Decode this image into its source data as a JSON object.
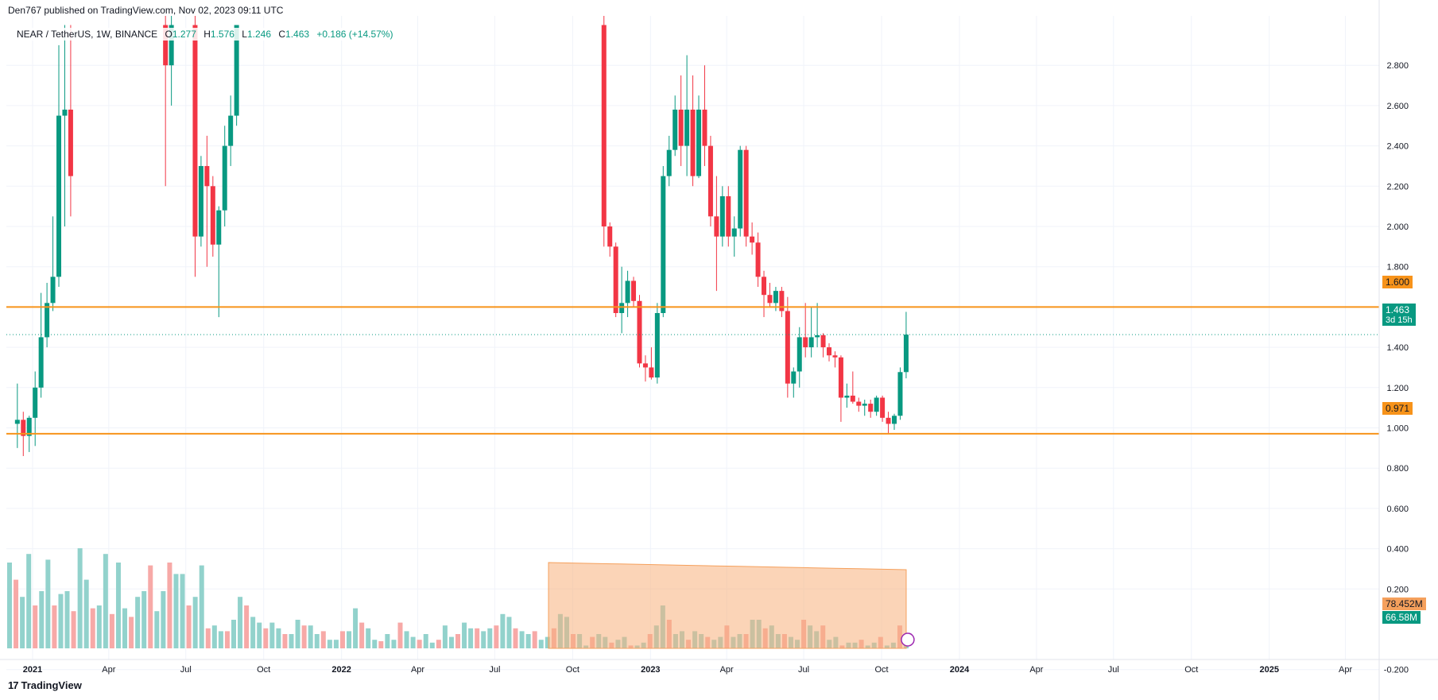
{
  "header": {
    "text": "Den767 published on TradingView.com, Nov 02, 2023 09:11 UTC"
  },
  "legend": {
    "symbol": "NEAR / TetherUS, 1W, BINANCE",
    "o_label": "O",
    "o_value": "1.277",
    "h_label": "H",
    "h_value": "1.576",
    "l_label": "L",
    "l_value": "1.246",
    "c_label": "C",
    "c_value": "1.463",
    "change": "+0.186 (+14.57%)"
  },
  "footer": {
    "logo": "17",
    "brand": "TradingView"
  },
  "badges": {
    "resistance": "1.600",
    "support": "0.971",
    "price": "1.463",
    "countdown": "3d 15h",
    "vol_ma": "78.452M",
    "vol_last": "66.58M"
  },
  "colors": {
    "up": "#089981",
    "down": "#f23645",
    "line": "#f7931a",
    "vol_ma_fill": "#f8b07c",
    "grid": "#f0f3fa"
  },
  "chart_data": {
    "type": "candlestick",
    "title": "NEAR / TetherUS, 1W, BINANCE",
    "y_ticks": [
      "2.800",
      "2.600",
      "2.400",
      "2.200",
      "2.000",
      "1.800",
      "1.600",
      "1.400",
      "1.200",
      "1.000",
      "0.800",
      "0.600",
      "0.400",
      "0.200",
      "-0.200"
    ],
    "x_ticks": [
      "2021",
      "Apr",
      "Jul",
      "Oct",
      "2022",
      "Apr",
      "Jul",
      "Oct",
      "2023",
      "Apr",
      "Jul",
      "Oct",
      "2024",
      "Apr",
      "Jul",
      "Oct",
      "2025",
      "Apr"
    ],
    "horizontal_lines": [
      {
        "value": 1.6,
        "color": "#f7931a"
      },
      {
        "value": 0.971,
        "color": "#f7931a"
      }
    ],
    "last_price": 1.463,
    "candles": [
      {
        "date": "2020-12-14",
        "o": 1.02,
        "h": 1.22,
        "l": 0.9,
        "c": 1.04
      },
      {
        "date": "2020-12-21",
        "o": 1.04,
        "h": 1.08,
        "l": 0.86,
        "c": 0.96
      },
      {
        "date": "2020-12-28",
        "o": 0.96,
        "h": 1.06,
        "l": 0.88,
        "c": 1.05
      },
      {
        "date": "2021-01-04",
        "o": 1.05,
        "h": 1.28,
        "l": 0.91,
        "c": 1.2
      },
      {
        "date": "2021-01-11",
        "o": 1.2,
        "h": 1.67,
        "l": 1.15,
        "c": 1.45
      },
      {
        "date": "2021-01-18",
        "o": 1.45,
        "h": 1.72,
        "l": 1.4,
        "c": 1.62
      },
      {
        "date": "2021-01-25",
        "o": 1.62,
        "h": 2.05,
        "l": 1.58,
        "c": 1.75
      },
      {
        "date": "2021-02-01",
        "o": 1.75,
        "h": 2.9,
        "l": 1.7,
        "c": 2.55
      },
      {
        "date": "2021-02-08",
        "o": 2.55,
        "h": 3.0,
        "l": 2.0,
        "c": 2.58
      },
      {
        "date": "2021-02-15",
        "o": 2.58,
        "h": 3.0,
        "l": 2.05,
        "c": 2.25
      },
      {
        "date": "2021-06-07",
        "o": 3.0,
        "h": 3.1,
        "l": 2.2,
        "c": 2.8
      },
      {
        "date": "2021-06-14",
        "o": 2.8,
        "h": 3.1,
        "l": 2.6,
        "c": 3.0
      },
      {
        "date": "2021-07-12",
        "o": 3.0,
        "h": 3.1,
        "l": 1.75,
        "c": 1.95
      },
      {
        "date": "2021-07-19",
        "o": 1.95,
        "h": 2.35,
        "l": 1.9,
        "c": 2.3
      },
      {
        "date": "2021-07-26",
        "o": 2.3,
        "h": 2.45,
        "l": 1.8,
        "c": 2.2
      },
      {
        "date": "2021-08-02",
        "o": 2.2,
        "h": 2.25,
        "l": 1.85,
        "c": 1.91
      },
      {
        "date": "2021-08-09",
        "o": 1.91,
        "h": 2.1,
        "l": 1.55,
        "c": 2.08
      },
      {
        "date": "2021-08-16",
        "o": 2.08,
        "h": 2.5,
        "l": 2.0,
        "c": 2.4
      },
      {
        "date": "2021-08-23",
        "o": 2.4,
        "h": 2.65,
        "l": 2.3,
        "c": 2.55
      },
      {
        "date": "2021-08-30",
        "o": 2.55,
        "h": 3.0,
        "l": 2.5,
        "c": 3.0
      },
      {
        "date": "2022-11-07",
        "o": 3.0,
        "h": 3.05,
        "l": 1.9,
        "c": 2.0
      },
      {
        "date": "2022-11-14",
        "o": 2.0,
        "h": 2.02,
        "l": 1.85,
        "c": 1.9
      },
      {
        "date": "2022-11-21",
        "o": 1.9,
        "h": 1.92,
        "l": 1.55,
        "c": 1.57
      },
      {
        "date": "2022-11-28",
        "o": 1.57,
        "h": 1.8,
        "l": 1.47,
        "c": 1.62
      },
      {
        "date": "2022-12-05",
        "o": 1.62,
        "h": 1.78,
        "l": 1.55,
        "c": 1.73
      },
      {
        "date": "2022-12-12",
        "o": 1.73,
        "h": 1.75,
        "l": 1.6,
        "c": 1.63
      },
      {
        "date": "2022-12-19",
        "o": 1.63,
        "h": 1.66,
        "l": 1.3,
        "c": 1.32
      },
      {
        "date": "2022-12-26",
        "o": 1.32,
        "h": 1.36,
        "l": 1.23,
        "c": 1.3
      },
      {
        "date": "2023-01-02",
        "o": 1.3,
        "h": 1.4,
        "l": 1.24,
        "c": 1.25
      },
      {
        "date": "2023-01-09",
        "o": 1.25,
        "h": 1.62,
        "l": 1.22,
        "c": 1.57
      },
      {
        "date": "2023-01-16",
        "o": 1.57,
        "h": 2.3,
        "l": 1.55,
        "c": 2.25
      },
      {
        "date": "2023-01-23",
        "o": 2.25,
        "h": 2.45,
        "l": 2.2,
        "c": 2.38
      },
      {
        "date": "2023-01-30",
        "o": 2.38,
        "h": 2.65,
        "l": 2.35,
        "c": 2.58
      },
      {
        "date": "2023-02-06",
        "o": 2.58,
        "h": 2.75,
        "l": 2.3,
        "c": 2.4
      },
      {
        "date": "2023-02-13",
        "o": 2.4,
        "h": 2.85,
        "l": 2.25,
        "c": 2.58
      },
      {
        "date": "2023-02-20",
        "o": 2.58,
        "h": 2.75,
        "l": 2.2,
        "c": 2.25
      },
      {
        "date": "2023-02-27",
        "o": 2.25,
        "h": 2.65,
        "l": 2.24,
        "c": 2.58
      },
      {
        "date": "2023-03-06",
        "o": 2.58,
        "h": 2.8,
        "l": 2.3,
        "c": 2.4
      },
      {
        "date": "2023-03-13",
        "o": 2.4,
        "h": 2.45,
        "l": 2.0,
        "c": 2.05
      },
      {
        "date": "2023-03-20",
        "o": 2.05,
        "h": 2.25,
        "l": 1.68,
        "c": 1.95
      },
      {
        "date": "2023-03-27",
        "o": 1.95,
        "h": 2.2,
        "l": 1.9,
        "c": 2.15
      },
      {
        "date": "2023-04-03",
        "o": 2.15,
        "h": 2.2,
        "l": 1.9,
        "c": 1.95
      },
      {
        "date": "2023-04-10",
        "o": 1.95,
        "h": 2.05,
        "l": 1.85,
        "c": 1.99
      },
      {
        "date": "2023-04-17",
        "o": 1.99,
        "h": 2.4,
        "l": 1.95,
        "c": 2.38
      },
      {
        "date": "2023-04-24",
        "o": 2.38,
        "h": 2.4,
        "l": 1.9,
        "c": 1.95
      },
      {
        "date": "2023-05-01",
        "o": 1.95,
        "h": 2.02,
        "l": 1.86,
        "c": 1.92
      },
      {
        "date": "2023-05-08",
        "o": 1.92,
        "h": 1.97,
        "l": 1.7,
        "c": 1.75
      },
      {
        "date": "2023-05-15",
        "o": 1.75,
        "h": 1.78,
        "l": 1.55,
        "c": 1.66
      },
      {
        "date": "2023-05-22",
        "o": 1.66,
        "h": 1.72,
        "l": 1.6,
        "c": 1.62
      },
      {
        "date": "2023-05-29",
        "o": 1.62,
        "h": 1.7,
        "l": 1.58,
        "c": 1.68
      },
      {
        "date": "2023-06-05",
        "o": 1.68,
        "h": 1.7,
        "l": 1.55,
        "c": 1.58
      },
      {
        "date": "2023-06-12",
        "o": 1.58,
        "h": 1.65,
        "l": 1.15,
        "c": 1.22
      },
      {
        "date": "2023-06-19",
        "o": 1.22,
        "h": 1.3,
        "l": 1.15,
        "c": 1.28
      },
      {
        "date": "2023-06-26",
        "o": 1.28,
        "h": 1.5,
        "l": 1.2,
        "c": 1.45
      },
      {
        "date": "2023-07-03",
        "o": 1.45,
        "h": 1.62,
        "l": 1.35,
        "c": 1.4
      },
      {
        "date": "2023-07-10",
        "o": 1.4,
        "h": 1.6,
        "l": 1.35,
        "c": 1.45
      },
      {
        "date": "2023-07-17",
        "o": 1.45,
        "h": 1.62,
        "l": 1.4,
        "c": 1.46
      },
      {
        "date": "2023-07-24",
        "o": 1.46,
        "h": 1.47,
        "l": 1.35,
        "c": 1.4
      },
      {
        "date": "2023-07-31",
        "o": 1.4,
        "h": 1.42,
        "l": 1.33,
        "c": 1.36
      },
      {
        "date": "2023-08-07",
        "o": 1.36,
        "h": 1.38,
        "l": 1.3,
        "c": 1.35
      },
      {
        "date": "2023-08-14",
        "o": 1.35,
        "h": 1.36,
        "l": 1.03,
        "c": 1.15
      },
      {
        "date": "2023-08-21",
        "o": 1.15,
        "h": 1.22,
        "l": 1.1,
        "c": 1.16
      },
      {
        "date": "2023-08-28",
        "o": 1.16,
        "h": 1.28,
        "l": 1.12,
        "c": 1.13
      },
      {
        "date": "2023-09-04",
        "o": 1.13,
        "h": 1.15,
        "l": 1.08,
        "c": 1.11
      },
      {
        "date": "2023-09-11",
        "o": 1.11,
        "h": 1.14,
        "l": 1.06,
        "c": 1.12
      },
      {
        "date": "2023-09-18",
        "o": 1.12,
        "h": 1.14,
        "l": 1.05,
        "c": 1.08
      },
      {
        "date": "2023-09-25",
        "o": 1.08,
        "h": 1.16,
        "l": 1.06,
        "c": 1.15
      },
      {
        "date": "2023-10-02",
        "o": 1.15,
        "h": 1.16,
        "l": 1.03,
        "c": 1.05
      },
      {
        "date": "2023-10-09",
        "o": 1.05,
        "h": 1.08,
        "l": 0.97,
        "c": 1.02
      },
      {
        "date": "2023-10-16",
        "o": 1.02,
        "h": 1.07,
        "l": 0.99,
        "c": 1.06
      },
      {
        "date": "2023-10-23",
        "o": 1.06,
        "h": 1.3,
        "l": 1.04,
        "c": 1.277
      },
      {
        "date": "2023-10-30",
        "o": 1.277,
        "h": 1.576,
        "l": 1.246,
        "c": 1.463
      }
    ],
    "volume": [
      60,
      48,
      36,
      66,
      30,
      40,
      62,
      30,
      38,
      40,
      26,
      70,
      48,
      28,
      30,
      66,
      24,
      60,
      28,
      22,
      36,
      40,
      58,
      26,
      40,
      60,
      52,
      52,
      30,
      36,
      58,
      14,
      16,
      12,
      12,
      20,
      36,
      30,
      22,
      18,
      14,
      18,
      14,
      10,
      10,
      20,
      16,
      16,
      10,
      12,
      6,
      6,
      12,
      12,
      28,
      18,
      14,
      6,
      5,
      10,
      6,
      18,
      12,
      8,
      6,
      10,
      4,
      6,
      16,
      8,
      10,
      18,
      14,
      14,
      12,
      14,
      16,
      24,
      22,
      14,
      12,
      10,
      12,
      6,
      8,
      14,
      24,
      22,
      10,
      10,
      2,
      8,
      10,
      8,
      4,
      6,
      8,
      2,
      2,
      4,
      10,
      16,
      30,
      20,
      10,
      12,
      6,
      12,
      10,
      8,
      6,
      8,
      16,
      8,
      10,
      10,
      20,
      20,
      14,
      16,
      10,
      10,
      8,
      6,
      20,
      16,
      12,
      16,
      6,
      8,
      2,
      4,
      4,
      6,
      2,
      4,
      8,
      2,
      4,
      16,
      10
    ]
  }
}
